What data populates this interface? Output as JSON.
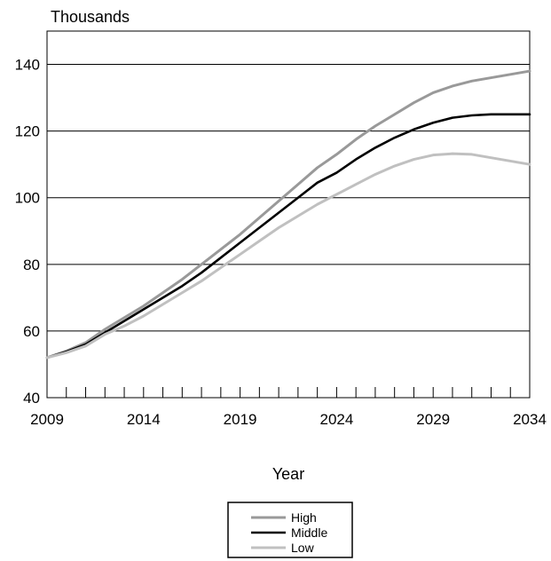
{
  "chart_data": {
    "type": "line",
    "ylabel": "Thousands",
    "xlabel": "Year",
    "xlim": [
      2009,
      2034
    ],
    "ylim": [
      40,
      150
    ],
    "x_ticks": [
      2009,
      2014,
      2019,
      2024,
      2029,
      2034
    ],
    "y_ticks": [
      40,
      60,
      80,
      100,
      120,
      140
    ],
    "grid": true,
    "legend_position": "bottom-center",
    "x": [
      2009,
      2010,
      2011,
      2012,
      2013,
      2014,
      2015,
      2016,
      2017,
      2018,
      2019,
      2020,
      2021,
      2022,
      2023,
      2024,
      2025,
      2026,
      2027,
      2028,
      2029,
      2030,
      2031,
      2032,
      2033,
      2034
    ],
    "series": [
      {
        "name": "High",
        "color": "#999999",
        "values": [
          52.0,
          54.0,
          56.5,
          60.5,
          64.0,
          67.5,
          71.5,
          75.5,
          80.0,
          84.5,
          89.0,
          94.0,
          99.0,
          104.0,
          109.0,
          113.0,
          117.5,
          121.5,
          125.0,
          128.5,
          131.5,
          133.5,
          135.0,
          136.0,
          137.0,
          138.0
        ]
      },
      {
        "name": "Middle",
        "color": "#000000",
        "values": [
          52.0,
          53.8,
          56.0,
          59.5,
          63.0,
          66.5,
          70.0,
          73.5,
          77.5,
          82.0,
          86.5,
          91.0,
          95.5,
          100.0,
          104.5,
          107.5,
          111.5,
          115.0,
          118.0,
          120.5,
          122.5,
          124.0,
          124.7,
          125.0,
          125.0,
          125.0
        ]
      },
      {
        "name": "Low",
        "color": "#c0c0c0",
        "values": [
          52.0,
          53.5,
          55.5,
          59.0,
          61.5,
          64.5,
          68.0,
          71.5,
          75.0,
          79.0,
          83.0,
          87.0,
          91.0,
          94.5,
          98.0,
          101.0,
          104.0,
          107.0,
          109.5,
          111.5,
          112.8,
          113.2,
          113.0,
          112.0,
          111.0,
          110.0
        ]
      }
    ]
  }
}
